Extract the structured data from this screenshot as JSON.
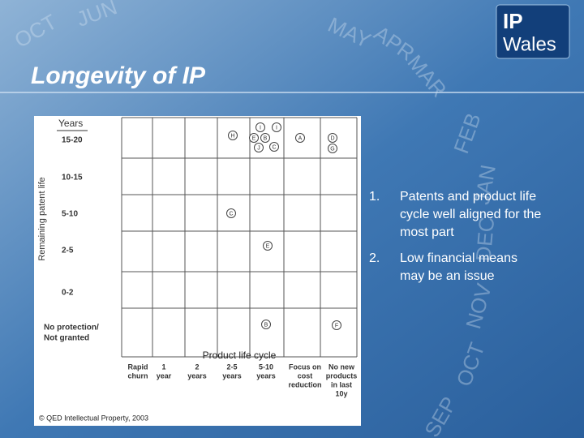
{
  "background_months": [
    "OCT",
    "JUN",
    "MAY",
    "APR",
    "MAR",
    "FEB",
    "JAN",
    "DEC",
    "NOV",
    "OCT",
    "SEP"
  ],
  "logo": {
    "line1": "IP",
    "line2": "Wales"
  },
  "title": "Longevity of IP",
  "figure": {
    "y_header": "Years",
    "y_axis_label": "Remaining patent life",
    "rows": [
      "15-20",
      "10-15",
      "5-10",
      "2-5",
      "0-2",
      "No protection/",
      "Not granted"
    ],
    "x_axis_label": "Product life cycle",
    "columns": [
      [
        "Rapid",
        "churn"
      ],
      [
        "1",
        "year"
      ],
      [
        "2",
        "years"
      ],
      [
        "2-5",
        "years"
      ],
      [
        "5-10",
        "years"
      ],
      [
        "Focus on",
        "cost",
        "reduction"
      ],
      [
        "No new",
        "products",
        "in last",
        "10y"
      ]
    ],
    "markers": [
      "I",
      "I",
      "H",
      "E",
      "B",
      "A",
      "D",
      "J",
      "C",
      "G",
      "C",
      "E",
      "B",
      "F"
    ],
    "copyright": "© QED Intellectual Property, 2003"
  },
  "points": [
    {
      "number": "1.",
      "lines": [
        "Patents and product life",
        "cycle well aligned for the",
        "most part"
      ]
    },
    {
      "number": "2.",
      "lines": [
        "Low financial means",
        "may be an issue"
      ]
    }
  ]
}
